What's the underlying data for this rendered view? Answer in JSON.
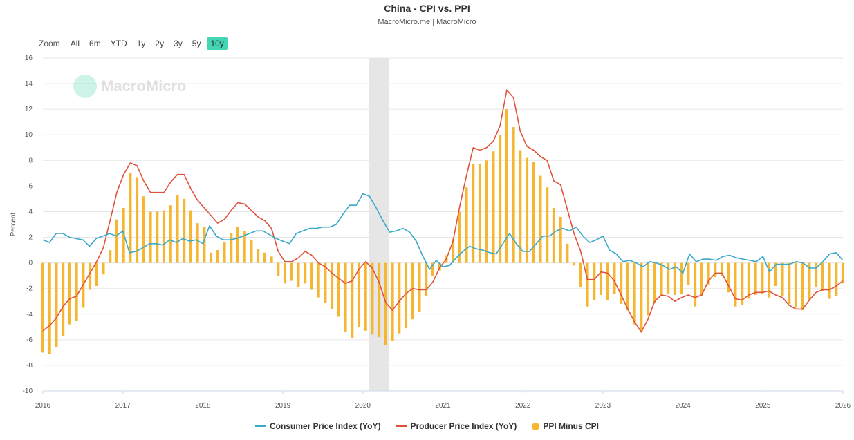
{
  "chart_data": {
    "type": "line",
    "title": "China - CPI vs. PPI",
    "subtitle": "MacroMicro.me | MacroMicro",
    "ylabel": "Percent",
    "xlabel": "",
    "ylim": [
      -10,
      16
    ],
    "yticks": [
      -10,
      -8,
      -6,
      -4,
      -2,
      0,
      2,
      4,
      6,
      8,
      10,
      12,
      14,
      16
    ],
    "xlim": [
      2016.0,
      2026.0
    ],
    "xticks": [
      2016,
      2017,
      2018,
      2019,
      2020,
      2021,
      2022,
      2023,
      2024,
      2025,
      2026
    ],
    "grid": true,
    "legend_position": "bottom",
    "shaded_band": [
      2020.08,
      2020.33
    ],
    "range_selector": {
      "zoom_label": "Zoom",
      "buttons": [
        "All",
        "6m",
        "YTD",
        "1y",
        "2y",
        "3y",
        "5y",
        "10y"
      ],
      "active": "10y"
    },
    "watermark": "MacroMicro",
    "colors": {
      "cpi": "#3aa8c8",
      "ppi": "#e0513a",
      "diff": "#f5b731",
      "band": "#e6e6e6"
    },
    "series": [
      {
        "name": "Consumer Price Index (YoY)",
        "type": "line",
        "values": [
          1.8,
          1.6,
          2.3,
          2.3,
          2.0,
          1.9,
          1.8,
          1.3,
          1.9,
          2.1,
          2.3,
          2.1,
          2.5,
          0.8,
          0.9,
          1.2,
          1.5,
          1.5,
          1.4,
          1.8,
          1.6,
          1.9,
          1.7,
          1.8,
          1.5,
          2.9,
          2.1,
          1.8,
          1.8,
          1.9,
          2.1,
          2.3,
          2.5,
          2.5,
          2.2,
          1.9,
          1.7,
          1.5,
          2.3,
          2.5,
          2.7,
          2.7,
          2.8,
          2.8,
          3.0,
          3.8,
          4.5,
          4.5,
          5.4,
          5.2,
          4.3,
          3.3,
          2.4,
          2.5,
          2.7,
          2.4,
          1.7,
          0.5,
          -0.5,
          0.2,
          -0.3,
          -0.2,
          0.4,
          0.9,
          1.3,
          1.1,
          1.0,
          0.8,
          0.7,
          1.5,
          2.3,
          1.5,
          0.9,
          0.9,
          1.5,
          2.1,
          2.1,
          2.5,
          2.7,
          2.5,
          2.8,
          2.1,
          1.6,
          1.8,
          2.1,
          1.0,
          0.7,
          0.1,
          0.2,
          0.0,
          -0.3,
          0.1,
          0.0,
          -0.2,
          -0.5,
          -0.3,
          -0.8,
          0.7,
          0.1,
          0.3,
          0.3,
          0.2,
          0.5,
          0.6,
          0.4,
          0.3,
          0.2,
          0.1,
          0.5,
          -0.7,
          -0.1,
          -0.1,
          -0.1,
          0.1,
          0.0,
          -0.4,
          -0.4,
          0.1,
          0.7,
          0.8,
          0.2
        ]
      },
      {
        "name": "Producer Price Index (YoY)",
        "type": "line",
        "values": [
          -5.3,
          -4.9,
          -4.3,
          -3.4,
          -2.8,
          -2.6,
          -1.7,
          -0.8,
          0.1,
          1.2,
          3.3,
          5.5,
          6.9,
          7.8,
          7.6,
          6.4,
          5.5,
          5.5,
          5.5,
          6.3,
          6.9,
          6.9,
          5.8,
          4.9,
          4.3,
          3.7,
          3.1,
          3.4,
          4.1,
          4.7,
          4.6,
          4.1,
          3.6,
          3.3,
          2.7,
          0.9,
          0.1,
          0.1,
          0.4,
          0.9,
          0.6,
          0.0,
          -0.3,
          -0.8,
          -1.2,
          -1.6,
          -1.4,
          -0.5,
          0.1,
          -0.4,
          -1.5,
          -3.1,
          -3.7,
          -3.0,
          -2.4,
          -2.0,
          -2.1,
          -2.1,
          -1.5,
          -0.4,
          0.3,
          1.7,
          4.4,
          6.8,
          9.0,
          8.8,
          9.0,
          9.5,
          10.7,
          13.5,
          12.9,
          10.3,
          9.1,
          8.8,
          8.3,
          8.0,
          6.4,
          6.1,
          4.2,
          2.3,
          0.9,
          -1.3,
          -1.3,
          -0.7,
          -0.8,
          -1.4,
          -2.5,
          -3.6,
          -4.6,
          -5.4,
          -4.4,
          -3.0,
          -2.5,
          -2.6,
          -3.0,
          -2.7,
          -2.5,
          -2.7,
          -2.5,
          -1.4,
          -0.8,
          -0.8,
          -1.8,
          -2.8,
          -2.9,
          -2.5,
          -2.3,
          -2.3,
          -2.2,
          -2.5,
          -2.7,
          -3.3,
          -3.6,
          -3.6,
          -2.9,
          -2.3,
          -2.1,
          -2.1,
          -1.8,
          -1.4
        ]
      },
      {
        "name": "PPI Minus CPI",
        "type": "bar",
        "values": [
          -7.0,
          -7.1,
          -6.6,
          -5.7,
          -4.8,
          -4.5,
          -3.5,
          -2.1,
          -1.8,
          -0.9,
          1.0,
          3.4,
          4.3,
          7.0,
          6.7,
          5.2,
          4.0,
          4.0,
          4.1,
          4.5,
          5.3,
          5.0,
          4.1,
          3.1,
          2.8,
          0.8,
          1.0,
          1.6,
          2.3,
          2.8,
          2.5,
          1.8,
          1.1,
          0.8,
          0.5,
          -1.0,
          -1.6,
          -1.4,
          -1.9,
          -1.6,
          -2.1,
          -2.7,
          -3.1,
          -3.6,
          -4.2,
          -5.4,
          -5.9,
          -5.0,
          -5.3,
          -5.6,
          -5.8,
          -6.4,
          -6.1,
          -5.5,
          -5.1,
          -4.4,
          -3.8,
          -2.6,
          -1.0,
          -0.6,
          0.6,
          1.9,
          4.0,
          5.9,
          7.7,
          7.7,
          8.0,
          8.7,
          10.0,
          12.0,
          10.6,
          8.8,
          8.2,
          7.9,
          6.8,
          5.9,
          4.3,
          3.6,
          1.5,
          -0.2,
          -1.9,
          -3.4,
          -2.9,
          -2.5,
          -2.9,
          -2.4,
          -3.2,
          -3.7,
          -4.8,
          -5.4,
          -4.1,
          -3.1,
          -2.5,
          -2.4,
          -2.5,
          -2.4,
          -1.7,
          -3.4,
          -2.6,
          -1.7,
          -1.1,
          -1.0,
          -2.3,
          -3.4,
          -3.3,
          -2.8,
          -2.5,
          -2.4,
          -2.7,
          -1.8,
          -2.6,
          -3.2,
          -3.5,
          -3.7,
          -2.9,
          -1.9,
          -2.2,
          -2.8,
          -2.6,
          -1.6
        ]
      }
    ]
  }
}
